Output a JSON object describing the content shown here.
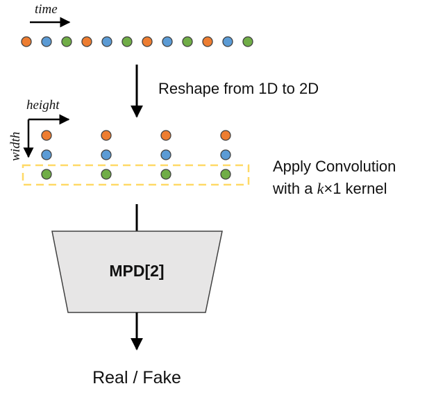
{
  "labels": {
    "time": "time",
    "height": "height",
    "width": "width",
    "reshape": "Reshape from 1D to 2D",
    "conv_line1": "Apply Convolution",
    "conv_line2_pre": "with a ",
    "conv_k": "k",
    "conv_line2_post": "×1 kernel",
    "block": "MPD[2]",
    "output": "Real / Fake"
  },
  "sequence": [
    "orange",
    "blue",
    "green",
    "orange",
    "blue",
    "green",
    "orange",
    "blue",
    "green",
    "orange",
    "blue",
    "green"
  ],
  "grid_columns": [
    [
      "orange",
      "blue",
      "green"
    ],
    [
      "orange",
      "blue",
      "green"
    ],
    [
      "orange",
      "blue",
      "green"
    ],
    [
      "orange",
      "blue",
      "green"
    ]
  ],
  "colors": {
    "orange": "#ED7D31",
    "blue": "#5B9BD5",
    "green": "#70AD47",
    "dot_stroke": "#404040",
    "highlight": "#FFD966",
    "block_fill": "#E7E6E6",
    "arrow": "#000000"
  }
}
